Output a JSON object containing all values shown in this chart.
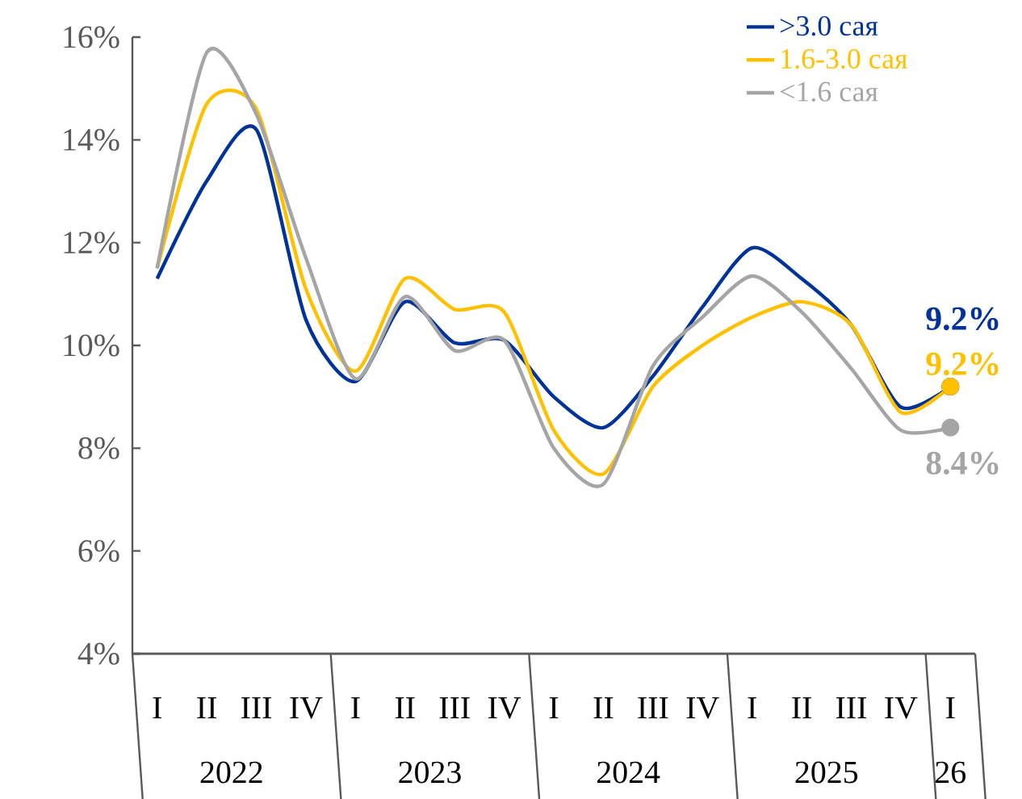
{
  "chart_data": {
    "type": "line",
    "categories": [
      "I",
      "II",
      "III",
      "IV",
      "I",
      "II",
      "III",
      "IV",
      "I",
      "II",
      "III",
      "IV",
      "I",
      "II",
      "III",
      "IV",
      "I"
    ],
    "annotations": [
      "2022",
      "2023",
      "2024",
      "2025",
      "26"
    ],
    "ylim": [
      4,
      16
    ],
    "yticks": [
      {
        "value": 4,
        "label": "4%"
      },
      {
        "value": 6,
        "label": "6%"
      },
      {
        "value": 8,
        "label": "8%"
      },
      {
        "value": 10,
        "label": "10%"
      },
      {
        "value": 12,
        "label": "12%"
      },
      {
        "value": 14,
        "label": "14%"
      },
      {
        "value": 16,
        "label": "16%"
      }
    ],
    "legend": "top right",
    "series": [
      {
        "name": ">3.0 сая",
        "color": "#003399",
        "values": [
          11.3,
          13.2,
          14.2,
          10.5,
          9.3,
          10.85,
          10.05,
          10.1,
          9.0,
          8.4,
          9.4,
          10.75,
          11.9,
          11.3,
          10.4,
          8.8,
          9.2
        ],
        "value_labels": [
          null,
          null,
          null,
          null,
          null,
          null,
          null,
          null,
          null,
          null,
          null,
          null,
          null,
          null,
          null,
          null,
          "9.2%"
        ]
      },
      {
        "name": "1.6-3.0 сая",
        "color": "#ffc000",
        "values": [
          11.5,
          14.7,
          14.6,
          11.1,
          9.5,
          11.3,
          10.7,
          10.65,
          8.35,
          7.5,
          9.2,
          10.0,
          10.55,
          10.85,
          10.4,
          8.7,
          9.2
        ],
        "value_labels": [
          null,
          null,
          null,
          null,
          null,
          null,
          null,
          null,
          null,
          null,
          null,
          null,
          null,
          null,
          null,
          null,
          "9.2%"
        ]
      },
      {
        "name": "<1.6 сая",
        "color": "#a5a5a5",
        "values": [
          11.5,
          15.7,
          14.5,
          11.7,
          9.35,
          10.95,
          9.9,
          10.1,
          8.0,
          7.3,
          9.6,
          10.55,
          11.35,
          10.65,
          9.55,
          8.35,
          8.4
        ],
        "value_labels": [
          null,
          null,
          null,
          null,
          null,
          null,
          null,
          null,
          null,
          null,
          null,
          null,
          null,
          null,
          null,
          null,
          "8.4%"
        ]
      }
    ]
  }
}
